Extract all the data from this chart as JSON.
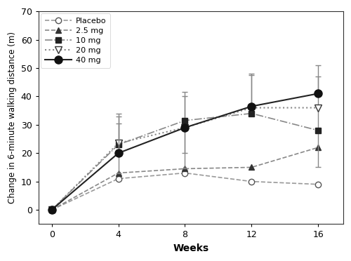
{
  "weeks": [
    0,
    4,
    8,
    12,
    16
  ],
  "series": [
    {
      "label": "Placebo",
      "y": [
        0,
        11,
        13,
        10,
        9
      ],
      "yerr_minus": [
        0,
        0,
        0,
        0,
        0
      ],
      "yerr_plus": [
        0,
        0,
        0,
        0,
        0
      ],
      "color": "#999999",
      "linestyle": "--",
      "marker": "o",
      "markerfacecolor": "white",
      "markeredgecolor": "#555555",
      "linewidth": 1.2,
      "markersize": 6,
      "zorder": 2
    },
    {
      "label": "2.5 mg",
      "y": [
        0,
        13,
        14.5,
        15,
        22
      ],
      "yerr_minus": [
        0,
        0,
        0,
        0,
        0
      ],
      "yerr_plus": [
        0,
        0,
        0,
        0,
        0
      ],
      "color": "#888888",
      "linestyle": "--",
      "marker": "^",
      "markerfacecolor": "#333333",
      "markeredgecolor": "#333333",
      "linewidth": 1.2,
      "markersize": 6,
      "zorder": 2
    },
    {
      "label": "10 mg",
      "y": [
        0,
        23,
        31.5,
        34,
        28
      ],
      "yerr_minus": [
        0,
        10,
        17,
        0,
        13
      ],
      "yerr_plus": [
        0,
        11,
        10,
        0,
        19
      ],
      "color": "#888888",
      "linestyle": "-.",
      "marker": "s",
      "markerfacecolor": "#222222",
      "markeredgecolor": "#222222",
      "linewidth": 1.2,
      "markersize": 6,
      "zorder": 3
    },
    {
      "label": "20 mg",
      "y": [
        0,
        23.5,
        29,
        36,
        36
      ],
      "yerr_minus": [
        0,
        0,
        9,
        0,
        0
      ],
      "yerr_plus": [
        0,
        7,
        11,
        12,
        0
      ],
      "color": "#888888",
      "linestyle": ":",
      "marker": "v",
      "markerfacecolor": "white",
      "markeredgecolor": "#333333",
      "linewidth": 1.5,
      "markersize": 7,
      "zorder": 3
    },
    {
      "label": "40 mg",
      "y": [
        0,
        20,
        29,
        36.5,
        41
      ],
      "yerr_minus": [
        0,
        0,
        0,
        0,
        0
      ],
      "yerr_plus": [
        0,
        13,
        0,
        11,
        10
      ],
      "color": "#222222",
      "linestyle": "-",
      "marker": "o",
      "markerfacecolor": "#111111",
      "markeredgecolor": "#111111",
      "linewidth": 1.5,
      "markersize": 8,
      "zorder": 4
    }
  ],
  "ylim": [
    -5,
    70
  ],
  "yticks": [
    0,
    10,
    20,
    30,
    40,
    50,
    60,
    70
  ],
  "xlim": [
    -0.8,
    17.5
  ],
  "xticks": [
    0,
    4,
    8,
    12,
    16
  ],
  "xlabel": "Weeks",
  "ylabel": "Change in 6-minute walking distance (m)",
  "background_color": "#ffffff",
  "ecolor": "#888888",
  "elinewidth": 1.0,
  "capsize": 3,
  "capthick": 1.0
}
